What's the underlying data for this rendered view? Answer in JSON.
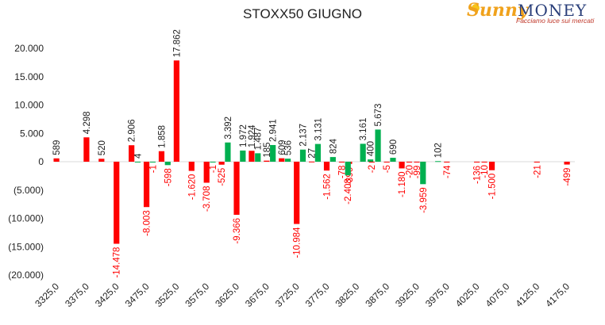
{
  "chart_data": {
    "type": "bar",
    "title": "STOXX50 GIUGNO",
    "xlabel": "",
    "ylabel": "",
    "ylim": [
      -20000,
      20000
    ],
    "yticks": [
      20000,
      15000,
      10000,
      5000,
      0,
      -5000,
      -10000,
      -15000,
      -20000
    ],
    "ytick_labels": [
      "20.000",
      "15.000",
      "10.000",
      "5.000",
      "0",
      "(5.000)",
      "(10.000)",
      "(15.000)",
      "(20.000)"
    ],
    "xlim": [
      3325,
      4175
    ],
    "xticks": [
      3325,
      3375,
      3425,
      3475,
      3525,
      3575,
      3625,
      3675,
      3725,
      3775,
      3825,
      3875,
      3925,
      3975,
      4025,
      4075,
      4125,
      4175
    ],
    "xtick_labels": [
      "3325,0",
      "3375,0",
      "3425,0",
      "3475,0",
      "3525,0",
      "3575,0",
      "3625,0",
      "3675,0",
      "3725,0",
      "3775,0",
      "3825,0",
      "3875,0",
      "3925,0",
      "3975,0",
      "4025,0",
      "4075,0",
      "4125,0",
      "4175,0"
    ],
    "colors": {
      "red": "#ff0000",
      "green": "#00b050"
    },
    "series": [
      {
        "color": "red",
        "points": [
          {
            "x": 3325,
            "y": 589,
            "label": "589"
          },
          {
            "x": 3375,
            "y": 4298,
            "label": "4.298"
          },
          {
            "x": 3400,
            "y": 520,
            "label": "520"
          },
          {
            "x": 3425,
            "y": -14478,
            "label": "-14.478"
          },
          {
            "x": 3450,
            "y": 2906,
            "label": "2.906"
          },
          {
            "x": 3475,
            "y": -8003,
            "label": "-8.003"
          },
          {
            "x": 3500,
            "y": 1858,
            "label": "1.858"
          },
          {
            "x": 3525,
            "y": 17862,
            "label": "17.862"
          },
          {
            "x": 3550,
            "y": -1620,
            "label": "-1.620"
          },
          {
            "x": 3575,
            "y": -3708,
            "label": "-3.708"
          },
          {
            "x": 3600,
            "y": -525,
            "label": "-525"
          },
          {
            "x": 3625,
            "y": -9366,
            "label": "-9.366"
          },
          {
            "x": 3650,
            "y": 1924,
            "label": "1.924"
          },
          {
            "x": 3675,
            "y": 185,
            "label": "185"
          },
          {
            "x": 3700,
            "y": 609,
            "label": "609"
          },
          {
            "x": 3725,
            "y": -10984,
            "label": "-10.984"
          },
          {
            "x": 3750,
            "y": 27,
            "label": "27"
          },
          {
            "x": 3775,
            "y": -1562,
            "label": "-1.562"
          },
          {
            "x": 3800,
            "y": -78,
            "label": "-78"
          },
          {
            "x": 3812.5,
            "y": -390,
            "label": "-390"
          },
          {
            "x": 3850,
            "y": -2,
            "label": "-2"
          },
          {
            "x": 3875,
            "y": -5,
            "label": "-5"
          },
          {
            "x": 3900,
            "y": -1180,
            "label": "-1.180"
          },
          {
            "x": 3912.5,
            "y": -20,
            "label": "-20"
          },
          {
            "x": 3925,
            "y": -99,
            "label": "-99"
          },
          {
            "x": 3975,
            "y": -74,
            "label": "-74"
          },
          {
            "x": 4025,
            "y": -136,
            "label": "-136"
          },
          {
            "x": 4037.5,
            "y": -10,
            "label": "-10"
          },
          {
            "x": 4050,
            "y": -1500,
            "label": "-1.500"
          },
          {
            "x": 4125,
            "y": -21,
            "label": "-21"
          },
          {
            "x": 4175,
            "y": -499,
            "label": "-499"
          }
        ]
      },
      {
        "color": "green",
        "points": [
          {
            "x": 3450,
            "y": 4,
            "label": "4"
          },
          {
            "x": 3475,
            "y": -1,
            "label": "-1"
          },
          {
            "x": 3500,
            "y": -598,
            "label": "-598"
          },
          {
            "x": 3575,
            "y": -1,
            "label": "-1"
          },
          {
            "x": 3600,
            "y": 3392,
            "label": "3.392"
          },
          {
            "x": 3625,
            "y": 1972,
            "label": "1.972"
          },
          {
            "x": 3650,
            "y": 1487,
            "label": "1.487"
          },
          {
            "x": 3675,
            "y": 2941,
            "label": "2.941"
          },
          {
            "x": 3700,
            "y": 536,
            "label": "536"
          },
          {
            "x": 3725,
            "y": 2137,
            "label": "2.137"
          },
          {
            "x": 3750,
            "y": 3131,
            "label": "3.131"
          },
          {
            "x": 3775,
            "y": 824,
            "label": "824"
          },
          {
            "x": 3800,
            "y": -2408,
            "label": "-2.408"
          },
          {
            "x": 3825,
            "y": 3161,
            "label": "3.161"
          },
          {
            "x": 3837.5,
            "y": 400,
            "label": "400"
          },
          {
            "x": 3850,
            "y": 5673,
            "label": "5.673"
          },
          {
            "x": 3875,
            "y": 690,
            "label": "690"
          },
          {
            "x": 3925,
            "y": -3959,
            "label": "-3.959"
          },
          {
            "x": 3950,
            "y": 102,
            "label": "102"
          }
        ]
      }
    ]
  },
  "logo": {
    "brand_a": "Sunny",
    "brand_b": "MONEY",
    "tagline": "Facciamo luce sui mercati"
  }
}
